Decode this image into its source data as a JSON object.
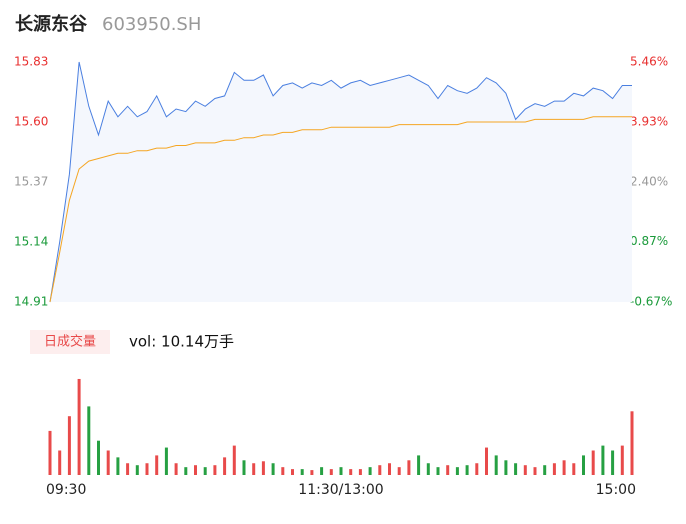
{
  "chart_data": [
    {
      "type": "line",
      "title": "长源东谷",
      "subtitle": "603950.SH",
      "x": [
        0,
        4,
        8,
        12,
        16,
        20,
        24,
        28,
        32,
        36,
        40,
        44,
        48,
        52,
        56,
        60,
        64,
        68,
        72,
        76,
        80,
        84,
        88,
        92,
        96,
        100,
        104,
        108,
        112,
        116,
        120,
        124,
        128,
        132,
        136,
        140,
        144,
        148,
        152,
        156,
        160,
        164,
        168,
        172,
        176,
        180,
        184,
        188,
        192,
        196,
        200,
        204,
        208,
        212,
        216,
        220,
        224,
        228,
        232,
        236,
        240
      ],
      "xlim": [
        0,
        240
      ],
      "xticks": [
        {
          "value": 0,
          "label": "09:30"
        },
        {
          "value": 120,
          "label": "11:30/13:00"
        },
        {
          "value": 240,
          "label": "15:00"
        }
      ],
      "ylim": [
        14.91,
        15.83
      ],
      "yticks": [
        14.91,
        15.14,
        15.37,
        {
          "value": 15.6,
          "label": "15.60"
        },
        15.83
      ],
      "ytick_colors": [
        "#1a9a3a",
        "#1a9a3a",
        "#999999",
        "#e83030",
        "#e83030"
      ],
      "y2lim": [
        -0.67,
        5.46
      ],
      "y2ticks": [
        {
          "value": -0.67,
          "label": "-0.67%"
        },
        {
          "value": 0.87,
          "label": "0.87%"
        },
        {
          "value": 2.4,
          "label": "2.40%"
        },
        {
          "value": 3.93,
          "label": "3.93%"
        },
        {
          "value": 5.46,
          "label": "5.46%"
        }
      ],
      "y2tick_colors": [
        "#1a9a3a",
        "#1a9a3a",
        "#999999",
        "#e83030",
        "#e83030"
      ],
      "series": [
        {
          "color": "#4a7fe0",
          "values": [
            14.91,
            15.14,
            15.4,
            15.83,
            15.66,
            15.55,
            15.68,
            15.62,
            15.66,
            15.62,
            15.64,
            15.7,
            15.62,
            15.65,
            15.64,
            15.68,
            15.66,
            15.69,
            15.7,
            15.79,
            15.76,
            15.76,
            15.78,
            15.7,
            15.74,
            15.75,
            15.73,
            15.75,
            15.74,
            15.76,
            15.73,
            15.75,
            15.76,
            15.74,
            15.75,
            15.76,
            15.77,
            15.78,
            15.76,
            15.74,
            15.69,
            15.74,
            15.72,
            15.71,
            15.73,
            15.77,
            15.75,
            15.71,
            15.61,
            15.65,
            15.67,
            15.66,
            15.68,
            15.68,
            15.71,
            15.7,
            15.73,
            15.72,
            15.69,
            15.74,
            15.74
          ]
        },
        {
          "color": "#f5a623",
          "values": [
            14.91,
            15.1,
            15.3,
            15.42,
            15.45,
            15.46,
            15.47,
            15.48,
            15.48,
            15.49,
            15.49,
            15.5,
            15.5,
            15.51,
            15.51,
            15.52,
            15.52,
            15.52,
            15.53,
            15.53,
            15.54,
            15.54,
            15.55,
            15.55,
            15.56,
            15.56,
            15.57,
            15.57,
            15.57,
            15.58,
            15.58,
            15.58,
            15.58,
            15.58,
            15.58,
            15.58,
            15.59,
            15.59,
            15.59,
            15.59,
            15.59,
            15.59,
            15.59,
            15.6,
            15.6,
            15.6,
            15.6,
            15.6,
            15.6,
            15.6,
            15.61,
            15.61,
            15.61,
            15.61,
            15.61,
            15.61,
            15.62,
            15.62,
            15.62,
            15.62,
            15.62
          ]
        }
      ]
    },
    {
      "type": "bar",
      "title": "日成交量",
      "annotation": "vol: 10.14万手",
      "x": [
        0,
        4,
        8,
        12,
        16,
        20,
        24,
        28,
        32,
        36,
        40,
        44,
        48,
        52,
        56,
        60,
        64,
        68,
        72,
        76,
        80,
        84,
        88,
        92,
        96,
        100,
        104,
        108,
        112,
        116,
        120,
        124,
        128,
        132,
        136,
        140,
        144,
        148,
        152,
        156,
        160,
        164,
        168,
        172,
        176,
        180,
        184,
        188,
        192,
        196,
        200,
        204,
        208,
        212,
        216,
        220,
        224,
        228,
        232,
        236,
        240
      ],
      "xlim": [
        0,
        240
      ],
      "ylim": [
        0,
        100
      ],
      "values": [
        45,
        25,
        60,
        98,
        70,
        35,
        25,
        18,
        12,
        10,
        12,
        20,
        28,
        12,
        8,
        10,
        8,
        10,
        18,
        30,
        15,
        12,
        14,
        12,
        8,
        6,
        6,
        5,
        8,
        6,
        8,
        6,
        6,
        8,
        10,
        12,
        8,
        15,
        20,
        12,
        8,
        10,
        8,
        10,
        12,
        28,
        20,
        15,
        12,
        10,
        8,
        10,
        12,
        15,
        12,
        20,
        25,
        30,
        25,
        30,
        65
      ],
      "colors": [
        "#e84a4a",
        "#e84a4a",
        "#e84a4a",
        "#e84a4a",
        "#26a042",
        "#26a042",
        "#e84a4a",
        "#26a042",
        "#e84a4a",
        "#26a042",
        "#e84a4a",
        "#e84a4a",
        "#26a042",
        "#e84a4a",
        "#26a042",
        "#e84a4a",
        "#26a042",
        "#e84a4a",
        "#e84a4a",
        "#e84a4a",
        "#26a042",
        "#e84a4a",
        "#e84a4a",
        "#26a042",
        "#e84a4a",
        "#e84a4a",
        "#26a042",
        "#e84a4a",
        "#26a042",
        "#e84a4a",
        "#26a042",
        "#e84a4a",
        "#e84a4a",
        "#26a042",
        "#e84a4a",
        "#e84a4a",
        "#e84a4a",
        "#e84a4a",
        "#26a042",
        "#26a042",
        "#26a042",
        "#e84a4a",
        "#26a042",
        "#26a042",
        "#e84a4a",
        "#e84a4a",
        "#26a042",
        "#26a042",
        "#26a042",
        "#e84a4a",
        "#e84a4a",
        "#26a042",
        "#e84a4a",
        "#e84a4a",
        "#e84a4a",
        "#26a042",
        "#e84a4a",
        "#26a042",
        "#26a042",
        "#e84a4a",
        "#e84a4a"
      ]
    }
  ]
}
